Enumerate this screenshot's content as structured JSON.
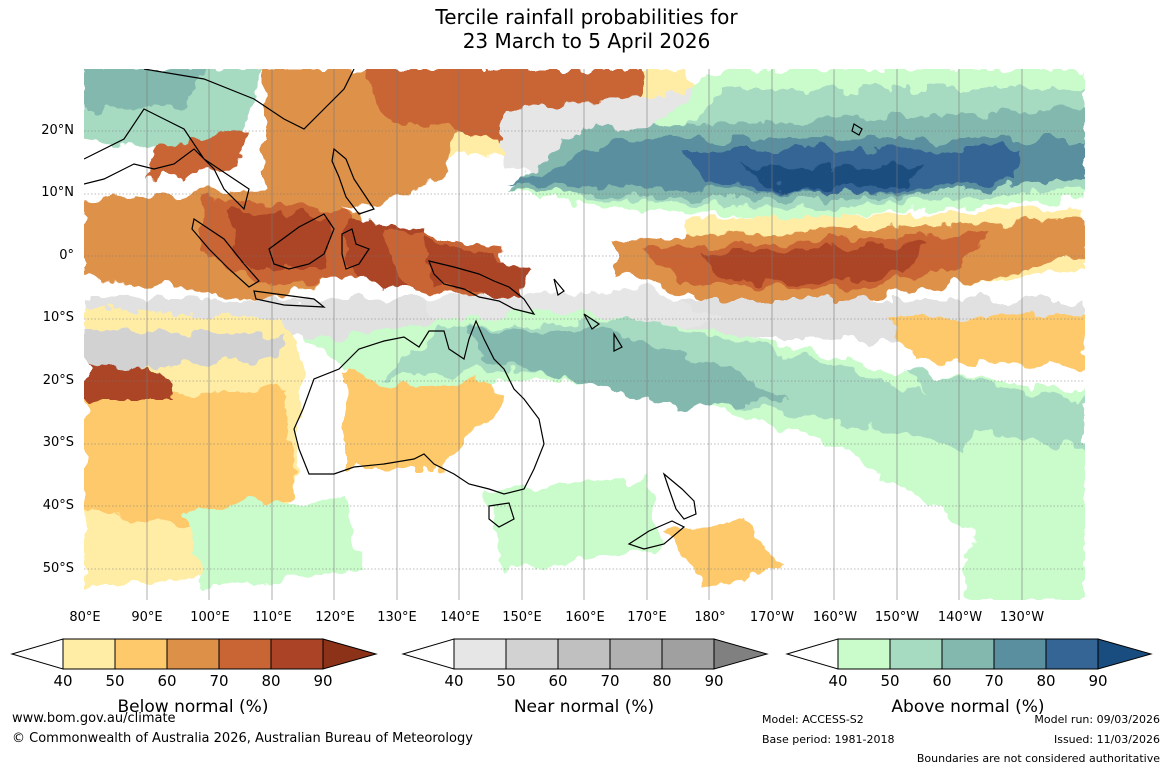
{
  "title": {
    "line1": "Tercile rainfall probabilities for",
    "line2": "23 March to 5 April 2026"
  },
  "map": {
    "latitude_labels": [
      "20°N",
      "10°N",
      "0°",
      "10°S",
      "20°S",
      "30°S",
      "40°S",
      "50°S"
    ],
    "longitude_labels": [
      "80°E",
      "90°E",
      "100°E",
      "110°E",
      "120°E",
      "130°E",
      "140°E",
      "150°E",
      "160°E",
      "170°E",
      "180°",
      "170°W",
      "160°W",
      "150°W",
      "140°W",
      "130°W"
    ]
  },
  "colorbars": {
    "below": {
      "title": "Below normal (%)",
      "ticks": [
        "40",
        "50",
        "60",
        "70",
        "80",
        "90"
      ],
      "colors": [
        "#ffeda6",
        "#fdc96b",
        "#dd9148",
        "#c96535",
        "#ab4426",
        "#8c3219"
      ]
    },
    "near": {
      "title": "Near normal (%)",
      "ticks": [
        "40",
        "50",
        "60",
        "70",
        "80",
        "90"
      ],
      "colors": [
        "#e6e6e6",
        "#d2d2d2",
        "#c0c0c0",
        "#b0b0b0",
        "#a0a0a0",
        "#808080"
      ]
    },
    "above": {
      "title": "Above normal (%)",
      "ticks": [
        "40",
        "50",
        "60",
        "70",
        "80",
        "90"
      ],
      "colors": [
        "#c9fbcb",
        "#a6dbc2",
        "#82b8ad",
        "#5a8fa0",
        "#356595",
        "#1a4d7f"
      ]
    }
  },
  "footer": {
    "url": "www.bom.gov.au/climate",
    "copyright": "© Commonwealth of Australia 2026, Australian Bureau of Meteorology",
    "model": "Model: ACCESS-S2",
    "base_period": "Base period: 1981-2018",
    "model_run": "Model run: 09/03/2026",
    "issued": "Issued: 11/03/2026",
    "disclaimer": "Boundaries are not considered authoritative"
  }
}
